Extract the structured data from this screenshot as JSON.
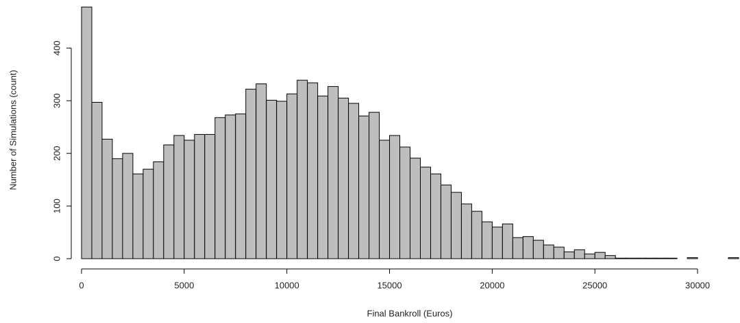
{
  "chart_data": {
    "type": "histogram",
    "xlabel": "Final Bankroll (Euros)",
    "ylabel": "Number of Simulations (count)",
    "color": "#bebebe",
    "bins": [
      0,
      500,
      1000,
      1500,
      2000,
      2500,
      3000,
      3500,
      4000,
      4500,
      5000,
      5500,
      6000,
      6500,
      7000,
      7500,
      8000,
      8500,
      9000,
      9500,
      10000,
      10500,
      11000,
      11500,
      12000,
      12500,
      13000,
      13500,
      14000,
      14500,
      15000,
      15500,
      16000,
      16500,
      17000,
      17500,
      18000,
      18500,
      19000,
      19500,
      20000,
      20500,
      21000,
      21500,
      22000,
      22500,
      23000,
      23500,
      24000,
      24500,
      25000,
      25500,
      26000,
      26500,
      27000,
      27500,
      28000,
      28500,
      29000,
      29500,
      30000,
      30500,
      31000,
      31500,
      32000
    ],
    "counts": [
      478,
      297,
      227,
      190,
      200,
      161,
      170,
      184,
      216,
      234,
      225,
      236,
      236,
      268,
      273,
      275,
      322,
      332,
      301,
      299,
      313,
      339,
      334,
      309,
      327,
      305,
      295,
      271,
      278,
      225,
      234,
      212,
      191,
      174,
      161,
      140,
      126,
      104,
      90,
      70,
      60,
      66,
      40,
      42,
      35,
      26,
      22,
      13,
      17,
      9,
      12,
      6,
      1,
      1,
      1,
      1,
      1,
      1,
      0,
      2,
      0,
      0,
      0,
      2
    ],
    "xlim": [
      0,
      32000
    ],
    "ylim": [
      0,
      490
    ],
    "xticks": [
      0,
      5000,
      10000,
      15000,
      20000,
      25000,
      30000
    ],
    "yticks": [
      0,
      100,
      200,
      300,
      400
    ]
  }
}
